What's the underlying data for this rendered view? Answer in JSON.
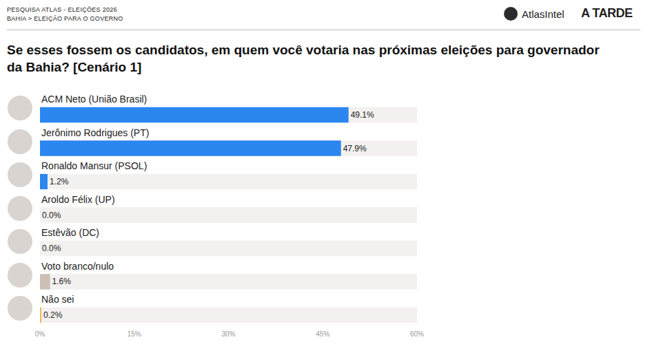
{
  "header": {
    "line1": "PESQUISA ATLAS - ELEIÇÕES 2026",
    "line2": "BAHIA > ELEIÇÃO PARA O GOVERNO",
    "logos": [
      "AtlasIntel",
      "A TARDE"
    ]
  },
  "chart_data": {
    "type": "bar",
    "orientation": "horizontal",
    "title": "Se esses fossem os candidatos, em quem você votaria nas próximas eleições para governador da Bahia? [Cenário 1]",
    "categories": [
      "ACM Neto (União Brasil)",
      "Jerônimo Rodrigues (PT)",
      "Ronaldo Mansur (PSOL)",
      "Aroldo Félix (UP)",
      "Estêvão (DC)",
      "Voto branco/nulo",
      "Não sei"
    ],
    "values": [
      49.1,
      47.9,
      1.2,
      0.0,
      0.0,
      1.6,
      0.2
    ],
    "value_labels": [
      "49.1%",
      "47.9%",
      "1.2%",
      "0.0%",
      "0.0%",
      "1.6%",
      "0.2%"
    ],
    "colors": [
      "#2b86f0",
      "#2b86f0",
      "#2b86f0",
      "#2b86f0",
      "#2b86f0",
      "#cbbfb6",
      "#f2b65a"
    ],
    "xlim": [
      0,
      60
    ],
    "xticks": [
      {
        "value": 0,
        "label": "0%"
      },
      {
        "value": 15,
        "label": "15%"
      },
      {
        "value": 30,
        "label": "30%"
      },
      {
        "value": 45,
        "label": "45%"
      },
      {
        "value": 60,
        "label": "60%"
      }
    ],
    "grid": false,
    "data_labels": true,
    "tick_labels": "x"
  }
}
